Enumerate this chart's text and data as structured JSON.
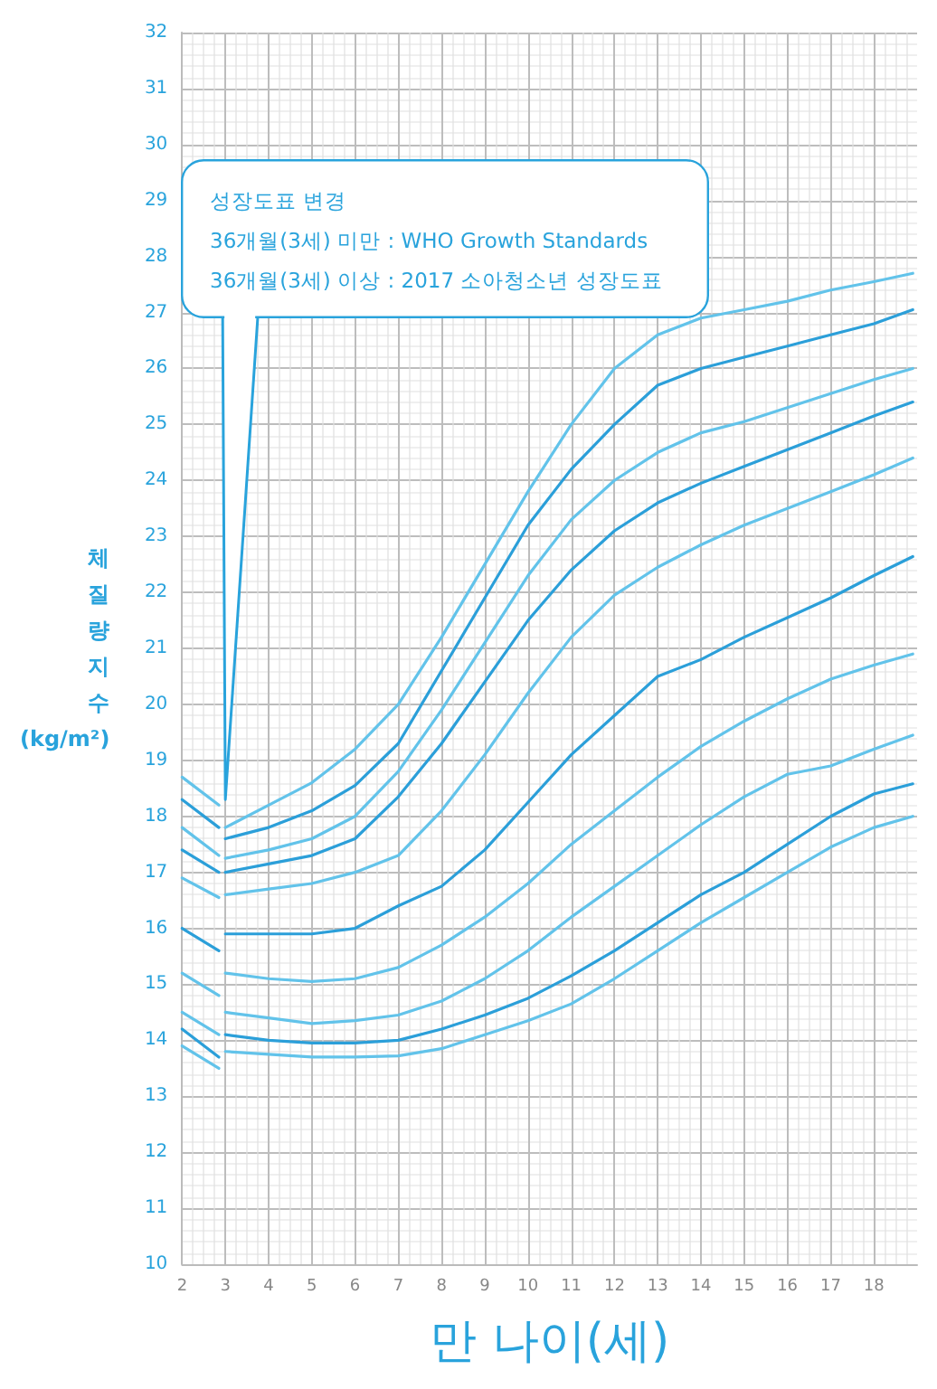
{
  "chart_data": {
    "type": "line",
    "xlabel": "만 나이(세)",
    "ylabel": "체질량지수 (kg/m²)",
    "annotations": [
      {
        "text": "성장도표 변경\n36개월(3세) 미만 : WHO Growth Standards\n36개월(3세) 이상 : 2017 소아청소년 성장도표",
        "x": 3,
        "y": 18.3
      }
    ],
    "x": [
      2,
      2.85,
      2.9,
      3,
      4,
      5,
      6,
      7,
      8,
      9,
      10,
      11,
      12,
      13,
      14,
      15,
      16,
      17,
      18,
      18.9
    ],
    "series": [
      {
        "color": "#62c3ea",
        "values": [
          18.7,
          18.2,
          null,
          17.8,
          18.2,
          18.6,
          19.2,
          20.0,
          21.2,
          22.5,
          23.8,
          25.0,
          26.0,
          26.6,
          26.9,
          27.05,
          27.2,
          27.4,
          27.55,
          27.7
        ]
      },
      {
        "color": "#2b9fd9",
        "values": [
          18.3,
          17.8,
          null,
          17.6,
          17.8,
          18.1,
          18.55,
          19.3,
          20.6,
          21.9,
          23.2,
          24.2,
          25.0,
          25.7,
          26.0,
          26.2,
          26.4,
          26.6,
          26.8,
          27.05
        ]
      },
      {
        "color": "#62c3ea",
        "values": [
          17.8,
          17.3,
          null,
          17.25,
          17.4,
          17.6,
          18.0,
          18.8,
          19.9,
          21.1,
          22.3,
          23.3,
          24.0,
          24.5,
          24.85,
          25.05,
          25.3,
          25.55,
          25.8,
          26.0
        ]
      },
      {
        "color": "#2b9fd9",
        "values": [
          17.4,
          17.0,
          null,
          17.0,
          17.15,
          17.3,
          17.6,
          18.35,
          19.3,
          20.4,
          21.5,
          22.4,
          23.1,
          23.6,
          23.95,
          24.25,
          24.55,
          24.85,
          25.15,
          25.4
        ]
      },
      {
        "color": "#62c3ea",
        "values": [
          16.9,
          16.55,
          null,
          16.6,
          16.7,
          16.8,
          17.0,
          17.3,
          18.1,
          19.1,
          20.2,
          21.2,
          21.95,
          22.45,
          22.85,
          23.2,
          23.5,
          23.8,
          24.1,
          24.4
        ]
      },
      {
        "color": "#2b9fd9",
        "values": [
          16.0,
          15.6,
          null,
          15.9,
          15.9,
          15.9,
          16.0,
          16.4,
          16.75,
          17.4,
          18.25,
          19.1,
          19.8,
          20.5,
          20.8,
          21.2,
          21.55,
          21.9,
          22.3,
          22.64
        ]
      },
      {
        "color": "#62c3ea",
        "values": [
          15.2,
          14.8,
          null,
          15.2,
          15.1,
          15.05,
          15.1,
          15.3,
          15.7,
          16.2,
          16.8,
          17.5,
          18.1,
          18.7,
          19.25,
          19.7,
          20.1,
          20.45,
          20.7,
          20.9
        ]
      },
      {
        "color": "#62c3ea",
        "values": [
          14.5,
          14.1,
          null,
          14.5,
          14.4,
          14.3,
          14.35,
          14.45,
          14.7,
          15.1,
          15.6,
          16.2,
          16.75,
          17.3,
          17.85,
          18.35,
          18.75,
          18.9,
          19.2,
          19.45
        ]
      },
      {
        "color": "#2b9fd9",
        "values": [
          14.2,
          13.7,
          null,
          14.1,
          14.0,
          13.95,
          13.95,
          14.0,
          14.2,
          14.45,
          14.75,
          15.15,
          15.6,
          16.1,
          16.6,
          17.0,
          17.5,
          18.0,
          18.4,
          18.58
        ]
      },
      {
        "color": "#62c3ea",
        "values": [
          13.9,
          13.5,
          null,
          13.8,
          13.75,
          13.7,
          13.7,
          13.72,
          13.85,
          14.1,
          14.35,
          14.65,
          15.1,
          15.6,
          16.1,
          16.55,
          17.0,
          17.45,
          17.8,
          18.0
        ]
      }
    ],
    "xlim": [
      2,
      19
    ],
    "xticks": [
      2,
      3,
      4,
      5,
      6,
      7,
      8,
      9,
      10,
      11,
      12,
      13,
      14,
      15,
      16,
      17,
      18
    ],
    "ylim": [
      10,
      32
    ],
    "yticks": [
      10,
      11,
      12,
      13,
      14,
      15,
      16,
      17,
      18,
      19,
      20,
      21,
      22,
      23,
      24,
      25,
      26,
      27,
      28,
      29,
      30,
      31,
      32
    ],
    "grid": true,
    "marker": "none",
    "line_style": "solid"
  }
}
